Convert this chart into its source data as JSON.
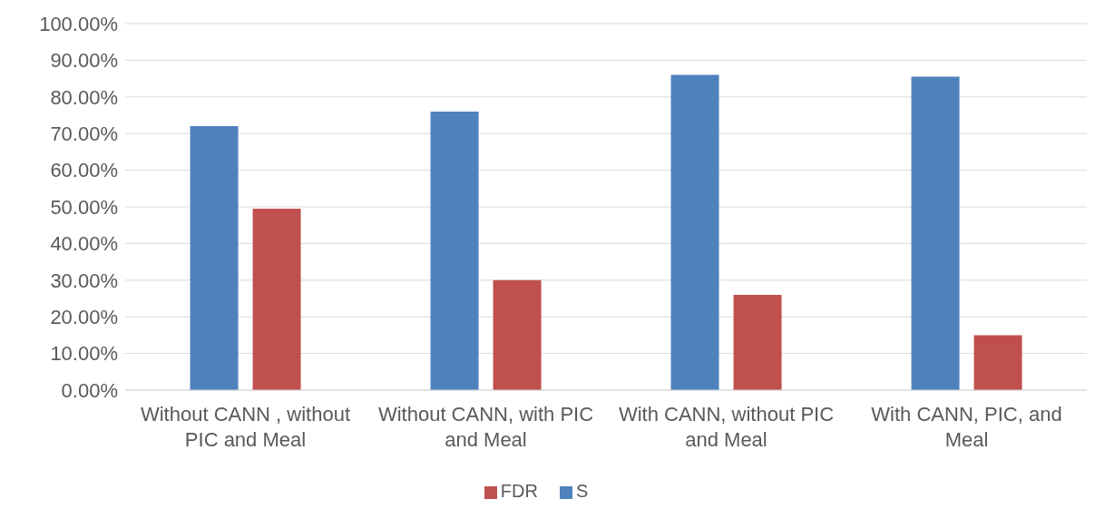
{
  "chart_data": {
    "type": "bar",
    "categories": [
      "Without CANN , without PIC and Meal",
      "Without CANN, with PIC and Meal",
      "With CANN, without PIC and Meal",
      "With CANN, PIC, and Meal"
    ],
    "series": [
      {
        "name": "S",
        "color": "#4f81bd",
        "values": [
          72,
          76,
          86,
          85.5
        ]
      },
      {
        "name": "FDR",
        "color": "#c0504d",
        "values": [
          49.5,
          30,
          26,
          15
        ]
      }
    ],
    "ylim": [
      0,
      100
    ],
    "yticks": [
      {
        "value": 0,
        "label": "0.00%"
      },
      {
        "value": 10,
        "label": "10.00%"
      },
      {
        "value": 20,
        "label": "20.00%"
      },
      {
        "value": 30,
        "label": "30.00%"
      },
      {
        "value": 40,
        "label": "40.00%"
      },
      {
        "value": 50,
        "label": "50.00%"
      },
      {
        "value": 60,
        "label": "60.00%"
      },
      {
        "value": 70,
        "label": "70.00%"
      },
      {
        "value": 80,
        "label": "80.00%"
      },
      {
        "value": 90,
        "label": "90.00%"
      },
      {
        "value": 100,
        "label": "100.00%"
      }
    ],
    "grid": "y",
    "legend": "bottom"
  }
}
